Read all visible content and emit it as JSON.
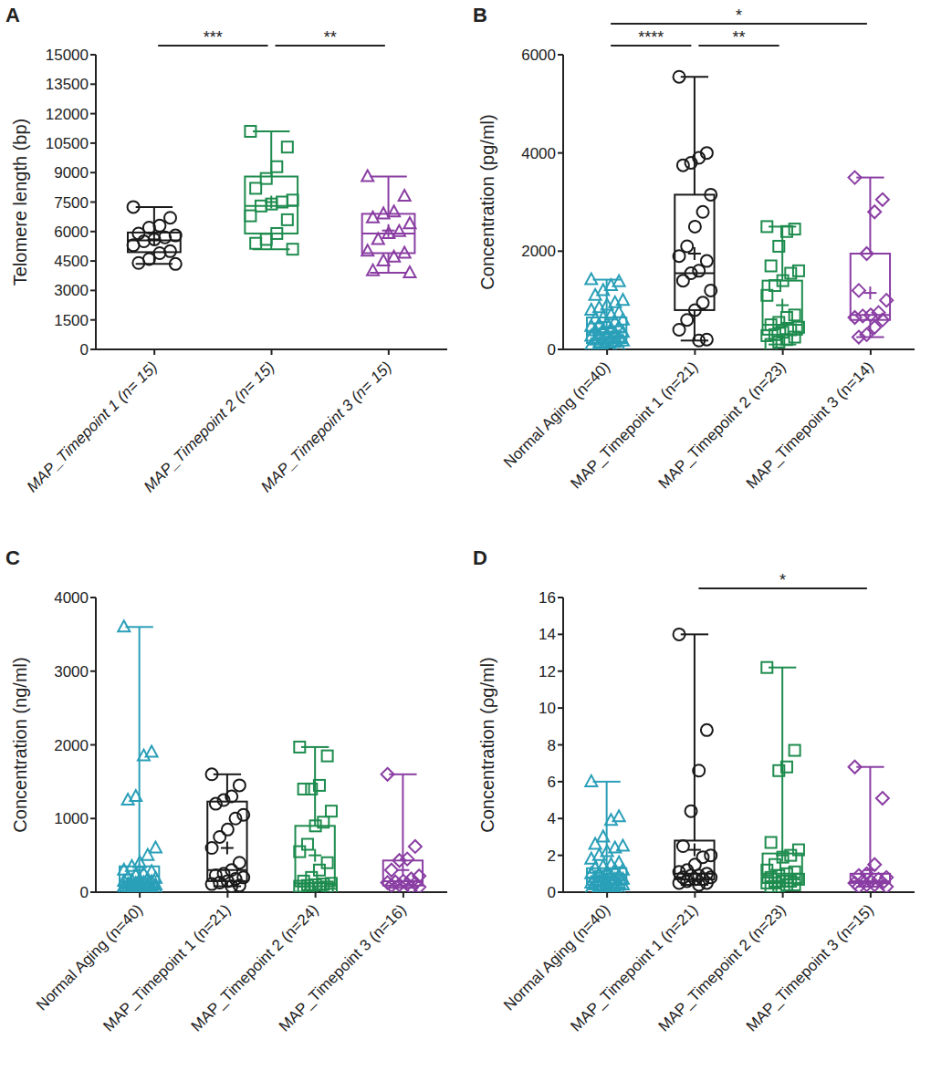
{
  "chart_data": [
    {
      "type": "box",
      "panel": "A",
      "y_label": "Telomere length (bp)",
      "categories": [
        "MAP_Timepoint 1 (n= 15)",
        "MAP_Timepoint 2 (n= 15)",
        "MAP_Timepoint 3 (n= 15)"
      ],
      "boxes": [
        {
          "color": "#1a1a1a",
          "marker": "circle",
          "values": [
            7250,
            6700,
            6300,
            6200,
            5900,
            5800,
            5700,
            5600,
            5500,
            5300,
            5000,
            4900,
            4600,
            4400,
            4350
          ],
          "whisker": [
            4350,
            7250
          ],
          "quartiles": [
            4950,
            5550,
            5950
          ],
          "mean": 5600
        },
        {
          "color": "#1e8c4e",
          "marker": "square",
          "values": [
            11100,
            10300,
            9300,
            8700,
            8200,
            7600,
            7500,
            7400,
            7300,
            6800,
            6600,
            5900,
            5600,
            5400,
            5100
          ],
          "whisker": [
            5100,
            11100
          ],
          "quartiles": [
            5900,
            7300,
            8800
          ],
          "mean": 7500
        },
        {
          "color": "#8a3ea3",
          "marker": "triangle",
          "values": [
            8800,
            7800,
            7000,
            6900,
            6700,
            6400,
            6000,
            5900,
            5600,
            5000,
            4900,
            4700,
            4500,
            4000,
            3900
          ],
          "whisker": [
            3900,
            8800
          ],
          "quartiles": [
            4900,
            5900,
            6900
          ],
          "mean": 6050
        }
      ],
      "ylim": [
        0,
        15000
      ],
      "yticks": [
        0,
        1500,
        3000,
        4500,
        6000,
        7500,
        9000,
        10500,
        12000,
        13500,
        15000
      ],
      "annotations": [
        {
          "from": 0,
          "to": 1,
          "text": "***"
        },
        {
          "from": 1,
          "to": 2,
          "text": "**"
        }
      ]
    },
    {
      "type": "box",
      "panel": "B",
      "y_label": "Concentration (pg/ml)",
      "categories": [
        "Normal Aging (n=40)",
        "MAP_Timepoint 1 (n=21)",
        "MAP_Timepoint 2 (n=23)",
        "MAP_Timepoint 3 (n=14)"
      ],
      "boxes": [
        {
          "color": "#2a9fb8",
          "marker": "triangle",
          "values": [
            1420,
            1380,
            1300,
            1200,
            1100,
            1000,
            950,
            900,
            850,
            800,
            750,
            700,
            650,
            620,
            600,
            560,
            520,
            500,
            470,
            450,
            420,
            400,
            380,
            350,
            330,
            310,
            290,
            270,
            250,
            230,
            210,
            190,
            170,
            150,
            130,
            110,
            90,
            80,
            60,
            50
          ],
          "whisker": [
            50,
            1420
          ],
          "quartiles": [
            130,
            350,
            650
          ],
          "mean": 450
        },
        {
          "color": "#1a1a1a",
          "marker": "circle",
          "values": [
            5550,
            4000,
            3900,
            3800,
            3750,
            3150,
            2800,
            2500,
            2100,
            1900,
            1800,
            1600,
            1550,
            1400,
            1200,
            950,
            800,
            600,
            400,
            200,
            180
          ],
          "whisker": [
            180,
            5550
          ],
          "quartiles": [
            800,
            1550,
            3150
          ],
          "mean": 1950
        },
        {
          "color": "#1e8c4e",
          "marker": "square",
          "values": [
            2500,
            2450,
            2400,
            2100,
            1700,
            1600,
            1550,
            1400,
            1300,
            1100,
            700,
            650,
            550,
            500,
            450,
            400,
            350,
            300,
            280,
            250,
            200,
            150,
            100
          ],
          "whisker": [
            100,
            2500
          ],
          "quartiles": [
            300,
            500,
            1400
          ],
          "mean": 900
        },
        {
          "color": "#8a3ea3",
          "marker": "diamond",
          "values": [
            3500,
            3050,
            2800,
            1950,
            1200,
            1000,
            750,
            700,
            680,
            650,
            600,
            450,
            300,
            250
          ],
          "whisker": [
            250,
            3500
          ],
          "quartiles": [
            600,
            700,
            1950
          ],
          "mean": 1150
        }
      ],
      "ylim": [
        0,
        6000
      ],
      "yticks": [
        0,
        2000,
        4000,
        6000
      ],
      "annotations": [
        {
          "from": 0,
          "to": 1,
          "text": "****"
        },
        {
          "from": 1,
          "to": 2,
          "text": "**"
        },
        {
          "from": 0,
          "to": 3,
          "text": "*"
        }
      ]
    },
    {
      "type": "box",
      "panel": "C",
      "y_label": "Concentration (ng/ml)",
      "categories": [
        "Normal Aging (n=40)",
        "MAP_Timepoint 1 (n=21)",
        "MAP_Timepoint 2 (n=24)",
        "MAP_Timepoint 3 (n=16)"
      ],
      "boxes": [
        {
          "color": "#2a9fb8",
          "marker": "triangle",
          "values": [
            3600,
            1900,
            1850,
            1300,
            1250,
            600,
            500,
            400,
            350,
            300,
            280,
            250,
            230,
            200,
            190,
            180,
            170,
            160,
            150,
            140,
            130,
            120,
            110,
            100,
            95,
            90,
            85,
            80,
            75,
            70,
            65,
            60,
            55,
            50,
            45,
            40,
            38,
            35,
            32,
            30
          ],
          "whisker": [
            30,
            3600
          ],
          "quartiles": [
            60,
            130,
            350
          ],
          "mean": 300
        },
        {
          "color": "#1a1a1a",
          "marker": "circle",
          "values": [
            1600,
            1450,
            1300,
            1250,
            1200,
            1050,
            1000,
            850,
            750,
            600,
            400,
            300,
            250,
            230,
            200,
            180,
            150,
            130,
            110,
            90,
            80
          ],
          "whisker": [
            80,
            1600
          ],
          "quartiles": [
            150,
            300,
            1230
          ],
          "mean": 600
        },
        {
          "color": "#1e8c4e",
          "marker": "square",
          "values": [
            1970,
            1850,
            1450,
            1400,
            1400,
            1100,
            950,
            900,
            650,
            550,
            400,
            300,
            200,
            150,
            120,
            110,
            100,
            90,
            80,
            70,
            60,
            50,
            40,
            30
          ],
          "whisker": [
            30,
            1970
          ],
          "quartiles": [
            80,
            120,
            900
          ],
          "mean": 500
        },
        {
          "color": "#8a3ea3",
          "marker": "diamond",
          "values": [
            1600,
            620,
            450,
            430,
            300,
            220,
            180,
            150,
            140,
            130,
            120,
            110,
            100,
            90,
            70,
            60
          ],
          "whisker": [
            60,
            1600
          ],
          "quartiles": [
            90,
            150,
            430
          ],
          "mean": 300
        }
      ],
      "ylim": [
        0,
        4000
      ],
      "yticks": [
        0,
        1000,
        2000,
        3000,
        4000
      ],
      "annotations": []
    },
    {
      "type": "box",
      "panel": "D",
      "y_label": "Concentration (ρg/ml)",
      "categories": [
        "Normal Aging (n=40)",
        "MAP_Timepoint 1 (n=21)",
        "MAP_Timepoint 2 (n=23)",
        "MAP_Timepoint 3 (n=15)"
      ],
      "boxes": [
        {
          "color": "#2a9fb8",
          "marker": "triangle",
          "values": [
            6.0,
            4.1,
            3.9,
            3.0,
            2.6,
            2.5,
            2.4,
            2.2,
            2.0,
            1.8,
            1.6,
            1.5,
            1.4,
            1.3,
            1.2,
            1.2,
            1.1,
            1.0,
            1.0,
            0.9,
            0.9,
            0.8,
            0.8,
            0.7,
            0.7,
            0.6,
            0.6,
            0.5,
            0.5,
            0.5,
            0.4,
            0.4,
            0.4,
            0.3,
            0.3,
            0.3,
            0.2,
            0.2,
            0.1,
            0.1
          ],
          "whisker": [
            0.1,
            6.0
          ],
          "quartiles": [
            0.4,
            0.8,
            1.3
          ],
          "mean": 1.0
        },
        {
          "color": "#1a1a1a",
          "marker": "circle",
          "values": [
            14,
            8.8,
            6.6,
            4.4,
            2.5,
            2.0,
            1.9,
            1.5,
            1.2,
            1.1,
            1.0,
            0.9,
            0.9,
            0.8,
            0.8,
            0.7,
            0.7,
            0.6,
            0.5,
            0.5,
            0.4
          ],
          "whisker": [
            0.4,
            14
          ],
          "quartiles": [
            0.7,
            1.0,
            2.8
          ],
          "mean": 2.3
        },
        {
          "color": "#1e8c4e",
          "marker": "square",
          "values": [
            12.2,
            7.7,
            6.8,
            6.6,
            2.7,
            2.3,
            2.0,
            1.9,
            1.5,
            1.2,
            1.1,
            1.0,
            0.9,
            0.8,
            0.7,
            0.6,
            0.6,
            0.5,
            0.5,
            0.4,
            0.4,
            0.3,
            0.3
          ],
          "whisker": [
            0.3,
            12.2
          ],
          "quartiles": [
            0.5,
            1.0,
            2.1
          ],
          "mean": 2.0
        },
        {
          "color": "#8a3ea3",
          "marker": "diamond",
          "values": [
            6.8,
            5.1,
            1.5,
            1.0,
            0.9,
            0.8,
            0.7,
            0.6,
            0.6,
            0.5,
            0.5,
            0.4,
            0.4,
            0.3,
            0.3
          ],
          "whisker": [
            0.3,
            6.8
          ],
          "quartiles": [
            0.5,
            0.6,
            1.0
          ],
          "mean": 1.2
        }
      ],
      "ylim": [
        0,
        16
      ],
      "yticks": [
        0,
        2,
        4,
        6,
        8,
        10,
        12,
        14,
        16
      ],
      "annotations": [
        {
          "from": 1,
          "to": 3,
          "text": "*"
        }
      ]
    }
  ]
}
